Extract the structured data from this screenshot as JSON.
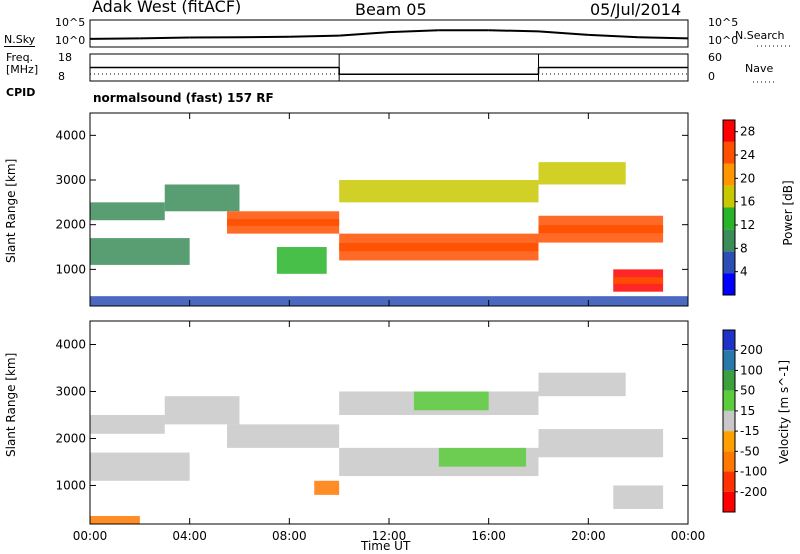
{
  "header": {
    "station": "Adak West (fitACF)",
    "beam": "Beam 05",
    "date": "05/Jul/2014"
  },
  "status_panels": {
    "nsky_label": "N.Sky",
    "nsky_ticks": [
      "10^5",
      "10^0"
    ],
    "nsearch_label": "N.Search",
    "freq_label": "Freq.",
    "freq_unit": "[MHz]",
    "freq_ticks": [
      "18",
      "8"
    ],
    "nave_label": "Nave",
    "nave_ticks": [
      "60",
      "0"
    ],
    "cpid_label": "CPID",
    "cpid_text": "normalsound (fast) 157 RF"
  },
  "colors": {
    "power_scale": [
      "#0000ff",
      "#2b4fb4",
      "#3c8c5a",
      "#28b428",
      "#c8c800",
      "#ff9600",
      "#ff5000",
      "#ff0000"
    ],
    "velocity_scale": [
      "#1e32c8",
      "#2878aa",
      "#3ca03c",
      "#5acd3c",
      "#c8c8c8",
      "#ffa000",
      "#ff7800",
      "#ff3200",
      "#ff0000"
    ]
  },
  "chart_data": [
    {
      "type": "line",
      "name": "N.Sky / N.Search",
      "x_range": [
        0,
        24
      ],
      "yticks": [
        "10^5",
        "10^0"
      ],
      "x": [
        0,
        2,
        4,
        6,
        8,
        10,
        12,
        14,
        16,
        18,
        20,
        22,
        24
      ],
      "values": [
        0.3,
        0.32,
        0.35,
        0.36,
        0.38,
        0.42,
        0.55,
        0.62,
        0.62,
        0.58,
        0.45,
        0.36,
        0.32
      ]
    },
    {
      "type": "line",
      "name": "Frequency / Nave",
      "x_range": [
        0,
        24
      ],
      "ylabel": "Freq. [MHz]",
      "ylim": [
        8,
        18
      ],
      "yticks": [
        18,
        8
      ],
      "y2ticks": [
        60,
        0
      ],
      "series": [
        {
          "name": "Freq.",
          "x": [
            0,
            10,
            10,
            18,
            18,
            24
          ],
          "values": [
            13,
            13,
            10.5,
            10.5,
            13,
            13
          ]
        },
        {
          "name": "Nave",
          "x": [
            0,
            24
          ],
          "values": [
            6,
            6
          ]
        }
      ]
    },
    {
      "type": "heatmap",
      "name": "Power",
      "xlabel": "Time UT",
      "ylabel": "Slant Range [km]",
      "xticks": [
        "00:00",
        "04:00",
        "08:00",
        "12:00",
        "16:00",
        "20:00",
        "00:00"
      ],
      "yticks": [
        1000,
        2000,
        3000,
        4000
      ],
      "ylim": [
        180,
        4500
      ],
      "colorbar_label": "Power [dB]",
      "colorbar_ticks": [
        4,
        8,
        12,
        16,
        20,
        24,
        28
      ],
      "colorbar_range": [
        0,
        30
      ],
      "bands": [
        {
          "t": [
            0.0,
            3.0
          ],
          "r": [
            2100,
            2500
          ],
          "db": 8
        },
        {
          "t": [
            0.0,
            4.0
          ],
          "r": [
            1100,
            1700
          ],
          "db": 10
        },
        {
          "t": [
            3.0,
            6.0
          ],
          "r": [
            2300,
            2900
          ],
          "db": 10
        },
        {
          "t": [
            5.5,
            10.0
          ],
          "r": [
            1800,
            2300
          ],
          "db": 24
        },
        {
          "t": [
            7.5,
            9.5
          ],
          "r": [
            900,
            1500
          ],
          "db": 14
        },
        {
          "t": [
            10.0,
            18.0
          ],
          "r": [
            2500,
            3000
          ],
          "db": 16
        },
        {
          "t": [
            10.0,
            18.0
          ],
          "r": [
            1200,
            1800
          ],
          "db": 26
        },
        {
          "t": [
            18.0,
            21.5
          ],
          "r": [
            2900,
            3400
          ],
          "db": 18
        },
        {
          "t": [
            18.0,
            23.0
          ],
          "r": [
            1600,
            2200
          ],
          "db": 24
        },
        {
          "t": [
            21.0,
            23.0
          ],
          "r": [
            500,
            1000
          ],
          "db": 27
        },
        {
          "t": [
            0.0,
            24.0
          ],
          "r": [
            180,
            400
          ],
          "db": 6
        }
      ]
    },
    {
      "type": "heatmap",
      "name": "Velocity",
      "xlabel": "Time UT",
      "ylabel": "Slant Range [km]",
      "xticks": [
        "00:00",
        "04:00",
        "08:00",
        "12:00",
        "16:00",
        "20:00",
        "00:00"
      ],
      "yticks": [
        1000,
        2000,
        3000,
        4000
      ],
      "ylim": [
        180,
        4500
      ],
      "colorbar_label": "Velocity [m s^-1]",
      "colorbar_ticks": [
        200,
        100,
        50,
        15,
        -15,
        -50,
        -100,
        -200
      ],
      "bands": [
        {
          "t": [
            0.0,
            3.0
          ],
          "r": [
            2100,
            2500
          ],
          "v": 0
        },
        {
          "t": [
            0.0,
            4.0
          ],
          "r": [
            1100,
            1700
          ],
          "v": 0
        },
        {
          "t": [
            3.0,
            6.0
          ],
          "r": [
            2300,
            2900
          ],
          "v": 0
        },
        {
          "t": [
            5.5,
            10.0
          ],
          "r": [
            1800,
            2300
          ],
          "v": 0
        },
        {
          "t": [
            9.0,
            10.0
          ],
          "r": [
            800,
            1100
          ],
          "v": -60
        },
        {
          "t": [
            10.0,
            18.0
          ],
          "r": [
            2500,
            3000
          ],
          "v": 0
        },
        {
          "t": [
            13.0,
            16.0
          ],
          "r": [
            2600,
            3000
          ],
          "v": 40
        },
        {
          "t": [
            10.0,
            18.0
          ],
          "r": [
            1200,
            1800
          ],
          "v": 0
        },
        {
          "t": [
            14.0,
            17.5
          ],
          "r": [
            1400,
            1800
          ],
          "v": 30
        },
        {
          "t": [
            18.0,
            21.5
          ],
          "r": [
            2900,
            3400
          ],
          "v": 0
        },
        {
          "t": [
            18.0,
            23.0
          ],
          "r": [
            1600,
            2200
          ],
          "v": 0
        },
        {
          "t": [
            21.0,
            23.0
          ],
          "r": [
            500,
            1000
          ],
          "v": 0
        },
        {
          "t": [
            0.0,
            2.0
          ],
          "r": [
            180,
            350
          ],
          "v": -60
        }
      ]
    }
  ]
}
